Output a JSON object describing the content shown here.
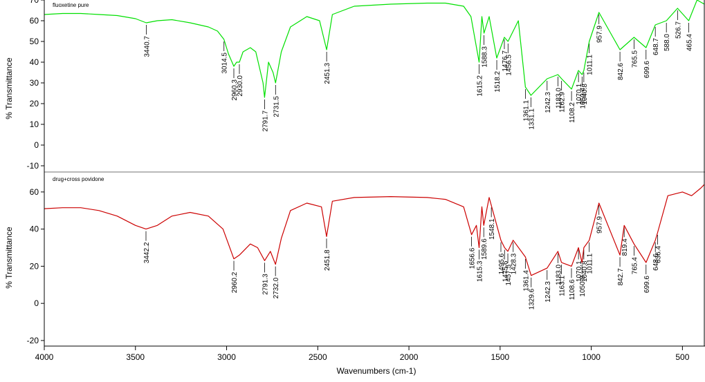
{
  "colors": {
    "green": "#00e000",
    "red": "#cc0000",
    "frame": "#000000",
    "divider": "#b8b8b8"
  },
  "xlabel": "Wavenumbers (cm-1)",
  "chart_data": [
    {
      "type": "line",
      "title": "fluoxetine pure",
      "ylabel": "% Transmittance",
      "xlim": [
        4000,
        380
      ],
      "ylim": [
        -13,
        70
      ],
      "x_ticks": [
        4000,
        3500,
        3000,
        2500,
        2000,
        1500,
        1000,
        500
      ],
      "y_ticks": [
        70,
        60,
        50,
        40,
        30,
        20,
        10,
        0,
        -10
      ],
      "series": [
        {
          "x": [
            4000,
            3900,
            3800,
            3700,
            3600,
            3500,
            3440.7,
            3380,
            3300,
            3200,
            3100,
            3050,
            3014.5,
            2990,
            2960.3,
            2945,
            2930,
            2910,
            2870,
            2840,
            2800,
            2791.7,
            2770,
            2745,
            2731.5,
            2700,
            2650,
            2560,
            2490,
            2451.3,
            2420,
            2300,
            2100,
            1900,
            1800,
            1700,
            1660,
            1615.2,
            1600,
            1588.3,
            1560,
            1518.2,
            1476.7,
            1456.5,
            1400,
            1361.1,
            1331.1,
            1242.3,
            1183,
            1162.9,
            1108.2,
            1070.1,
            1050,
            1040.8,
            1011.1,
            957.9,
            842.6,
            765.5,
            699.6,
            648.7,
            588,
            526.7,
            465.4,
            420,
            380
          ],
          "y": [
            63,
            63.5,
            63.5,
            63,
            62.5,
            61,
            59,
            60,
            60.5,
            59,
            57,
            55,
            51,
            44,
            38,
            40,
            40,
            45,
            47,
            45,
            30,
            23,
            40,
            35,
            30,
            45,
            57,
            62,
            60,
            46,
            63,
            67,
            68,
            68.5,
            68.5,
            67,
            62,
            40,
            62,
            54,
            62,
            42,
            52,
            50,
            60,
            28,
            24,
            32,
            34,
            32,
            27,
            36,
            34,
            36,
            50,
            64,
            46,
            52,
            47,
            58,
            60,
            66,
            60,
            70,
            68
          ]
        }
      ],
      "annotations": [
        "3440.7",
        "3014.5",
        "2960.3",
        "2930.0",
        "2791.7",
        "2731.5",
        "2451.3",
        "1615.2",
        "1588.3",
        "1518.2",
        "1476.7",
        "1456.5",
        "1361.1",
        "1331.1",
        "1242.3",
        "1183.0",
        "1162.9",
        "1108.2",
        "1070.1",
        "1050.4",
        "1040.8",
        "1011.1",
        "957.9",
        "842.6",
        "765.5",
        "699.6",
        "648.7",
        "588.0",
        "526.7",
        "465.4"
      ]
    },
    {
      "type": "line",
      "title": "drug+cross povidone",
      "ylabel": "% Transmittance",
      "xlim": [
        4000,
        380
      ],
      "ylim": [
        -23,
        70
      ],
      "x_ticks": [
        4000,
        3500,
        3000,
        2500,
        2000,
        1500,
        1000,
        500
      ],
      "y_ticks": [
        60,
        40,
        20,
        0,
        -20
      ],
      "series": [
        {
          "x": [
            4000,
            3900,
            3800,
            3700,
            3600,
            3500,
            3442.2,
            3380,
            3300,
            3200,
            3100,
            3020,
            2990,
            2960.2,
            2930,
            2870,
            2830,
            2791.3,
            2760,
            2732,
            2700,
            2650,
            2560,
            2480,
            2451.8,
            2420,
            2300,
            2100,
            1900,
            1800,
            1700,
            1656.6,
            1630,
            1615.3,
            1600,
            1589.6,
            1560,
            1495.6,
            1475.6,
            1457.5,
            1428.3,
            1361.4,
            1329.6,
            1242.3,
            1183,
            1163.1,
            1108.6,
            1070.1,
            1050.8,
            1040.8,
            1011.1,
            957.9,
            842.7,
            819.4,
            765.4,
            699.6,
            648.6,
            636.4,
            580,
            500,
            450,
            400,
            380
          ],
          "y": [
            51,
            51.5,
            51.5,
            50,
            47,
            42,
            40,
            42,
            47,
            49,
            47,
            40,
            32,
            24,
            26,
            32,
            30,
            23,
            28,
            21,
            35,
            50,
            54,
            52,
            36,
            55,
            57,
            57.5,
            57,
            56,
            52,
            37,
            42,
            30,
            52,
            42,
            57,
            34,
            30,
            28,
            34,
            25,
            15,
            19,
            28,
            22,
            20,
            30,
            22,
            30,
            34,
            54,
            26,
            42,
            32,
            22,
            34,
            38,
            58,
            60,
            58,
            62,
            64
          ]
        }
      ],
      "annotations": [
        "3442.2",
        "2960.2",
        "2791.3",
        "2732.0",
        "2451.8",
        "1656.6",
        "1615.3",
        "1589.6",
        "1548.1",
        "1495.6",
        "1475.6",
        "1457.5",
        "1428.3",
        "1361.4",
        "1329.6",
        "1242.3",
        "1183.0",
        "1163.1",
        "1108.6",
        "1070.1",
        "1050.8",
        "1040.8",
        "1011.1",
        "957.9",
        "842.7",
        "819.4",
        "765.4",
        "699.6",
        "648.6",
        "636.4"
      ]
    }
  ]
}
